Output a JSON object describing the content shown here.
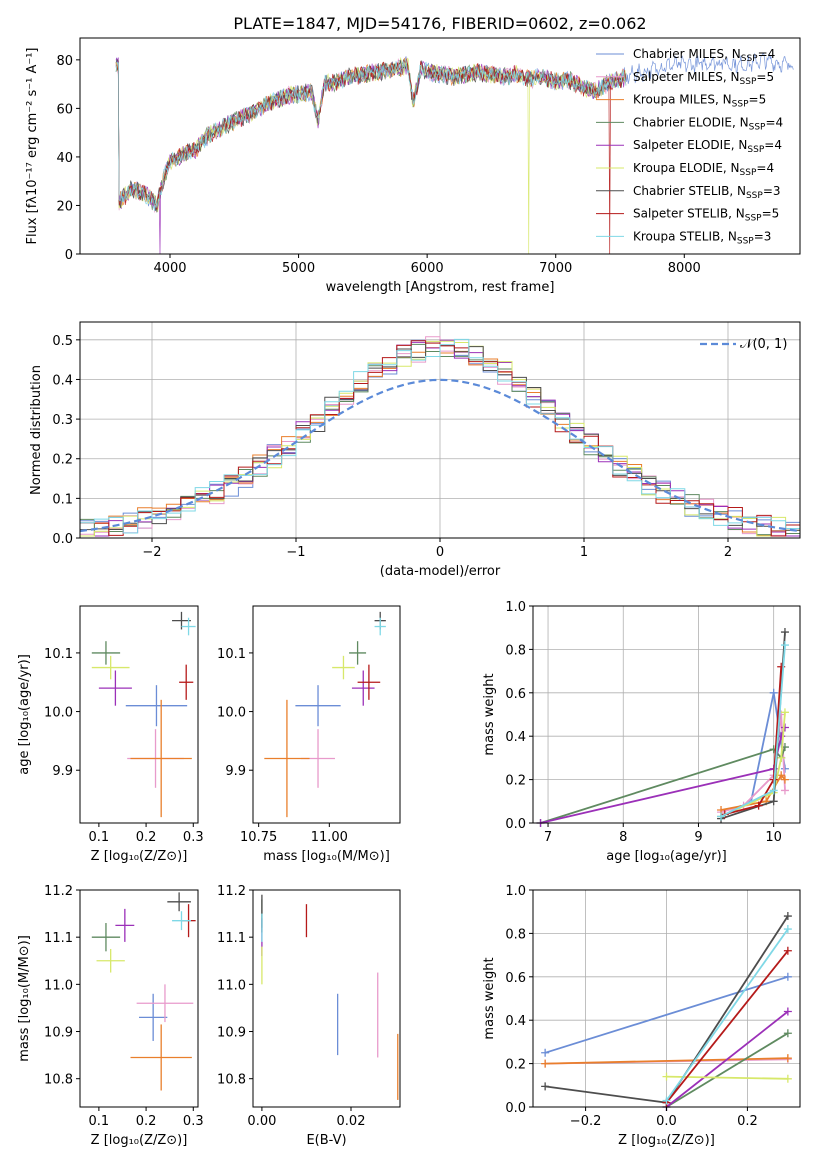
{
  "figure_title": "PLATE=1847, MJD=54176, FIBERID=0602, z=0.062",
  "series_colors": {
    "Chabrier MILES": "#6b8dd6",
    "Salpeter MILES": "#e89acb",
    "Kroupa MILES": "#e97f2c",
    "Chabrier ELODIE": "#5f8a60",
    "Salpeter ELODIE": "#9b30b8",
    "Kroupa ELODIE": "#d7e86a",
    "Chabrier STELIB": "#4d4d4d",
    "Salpeter STELIB": "#b51a1a",
    "Kroupa STELIB": "#7fd8e6"
  },
  "chart_data": [
    {
      "id": "spectrum",
      "type": "line",
      "title": "PLATE=1847, MJD=54176, FIBERID=0602, z=0.062",
      "xlabel": "wavelength [Angstrom, rest frame]",
      "ylabel": "Flux [fλ10⁻¹⁷ erg cm⁻² s⁻¹ A⁻¹]",
      "xlim": [
        3300,
        8900
      ],
      "ylim": [
        0,
        89
      ],
      "xticks": [
        "4000",
        "5000",
        "6000",
        "7000",
        "8000"
      ],
      "yticks": [
        "0",
        "20",
        "40",
        "60",
        "80"
      ],
      "legend_position": "right",
      "legend": [
        {
          "name": "Chabrier MILES",
          "nssp": "4"
        },
        {
          "name": "Salpeter MILES",
          "nssp": "5"
        },
        {
          "name": "Kroupa MILES",
          "nssp": "5"
        },
        {
          "name": "Chabrier ELODIE",
          "nssp": "4"
        },
        {
          "name": "Salpeter ELODIE",
          "nssp": "4"
        },
        {
          "name": "Kroupa ELODIE",
          "nssp": "4"
        },
        {
          "name": "Chabrier STELIB",
          "nssp": "3"
        },
        {
          "name": "Salpeter STELIB",
          "nssp": "5"
        },
        {
          "name": "Kroupa STELIB",
          "nssp": "3"
        }
      ],
      "x": [
        3600,
        3700,
        3800,
        3900,
        3950,
        4000,
        4100,
        4200,
        4300,
        4400,
        4500,
        4600,
        4700,
        4800,
        4900,
        5000,
        5100,
        5150,
        5200,
        5300,
        5400,
        5500,
        5600,
        5700,
        5800,
        5850,
        5890,
        5950,
        6000,
        6100,
        6200,
        6300,
        6400,
        6500,
        6600,
        6700,
        6800,
        6900,
        7000,
        7100,
        7200,
        7300,
        7400,
        7450,
        7500,
        7600,
        7700,
        7800,
        7900,
        8000,
        8100,
        8200,
        8300,
        8400,
        8500,
        8600,
        8700,
        8800
      ],
      "y": [
        21,
        27,
        25,
        20,
        31,
        38,
        41,
        43,
        49,
        52,
        55,
        57,
        60,
        63,
        65,
        66,
        67,
        55,
        70,
        71,
        73,
        74,
        75,
        76,
        77,
        78,
        62,
        76,
        75,
        74,
        73,
        74,
        75,
        74,
        73,
        74,
        72,
        73,
        71,
        72,
        69,
        67,
        70,
        71,
        72,
        74,
        75,
        77,
        78,
        78,
        78,
        79,
        79,
        78,
        78,
        80,
        79,
        78
      ],
      "dips": [
        {
          "series": "Salpeter ELODIE",
          "x": 3920
        },
        {
          "series": "Kroupa ELODIE",
          "x": 6790
        },
        {
          "series": "Salpeter STELIB",
          "x": 7420
        }
      ]
    },
    {
      "id": "residuals",
      "type": "histogram",
      "xlabel": "(data-model)/error",
      "ylabel": "Normed distribution",
      "xlim": [
        -2.5,
        2.5
      ],
      "ylim": [
        0,
        0.545
      ],
      "xticks": [
        "−2",
        "−1",
        "0",
        "1",
        "2"
      ],
      "yticks": [
        "0.0",
        "0.1",
        "0.2",
        "0.3",
        "0.4",
        "0.5"
      ],
      "grid": true,
      "legend_position": "upper right",
      "reference_curve": "𝒩(0, 1)",
      "bin_width": 0.1,
      "bin_start": -2.5
    },
    {
      "id": "age-vs-Z",
      "type": "errorbar",
      "xlabel": "Z [log₁₀(Z/Z⊙)]",
      "ylabel": "age  [log₁₀(age/yr)]",
      "xlim": [
        0.06,
        0.31
      ],
      "ylim": [
        9.81,
        10.18
      ],
      "xticks": [
        "0.1",
        "0.2",
        "0.3"
      ],
      "yticks": [
        "9.9",
        "10.0",
        "10.1"
      ],
      "points": [
        {
          "series": "Chabrier MILES",
          "x": 0.222,
          "y": 10.01,
          "xerr": 0.065,
          "yerr": 0.035
        },
        {
          "series": "Salpeter MILES",
          "x": 0.22,
          "y": 9.92,
          "xerr": 0.06,
          "yerr": 0.05
        },
        {
          "series": "Kroupa MILES",
          "x": 0.232,
          "y": 9.92,
          "xerr": 0.065,
          "yerr": 0.1
        },
        {
          "series": "Chabrier ELODIE",
          "x": 0.115,
          "y": 10.1,
          "xerr": 0.03,
          "yerr": 0.02
        },
        {
          "series": "Salpeter ELODIE",
          "x": 0.135,
          "y": 10.04,
          "xerr": 0.035,
          "yerr": 0.03
        },
        {
          "series": "Kroupa ELODIE",
          "x": 0.125,
          "y": 10.075,
          "xerr": 0.04,
          "yerr": 0.02
        },
        {
          "series": "Chabrier STELIB",
          "x": 0.275,
          "y": 10.155,
          "xerr": 0.02,
          "yerr": 0.015
        },
        {
          "series": "Salpeter STELIB",
          "x": 0.285,
          "y": 10.05,
          "xerr": 0.015,
          "yerr": 0.03
        },
        {
          "series": "Kroupa STELIB",
          "x": 0.29,
          "y": 10.145,
          "xerr": 0.015,
          "yerr": 0.015
        }
      ]
    },
    {
      "id": "age-vs-mass",
      "type": "errorbar",
      "xlabel": "mass [log₁₀(M/M⊙)]",
      "ylabel": "",
      "xlim": [
        10.73,
        11.25
      ],
      "ylim": [
        9.81,
        10.18
      ],
      "xticks": [
        "10.75",
        "11.00"
      ],
      "yticks": [
        "9.9",
        "10.0",
        "10.1"
      ],
      "points": [
        {
          "series": "Chabrier MILES",
          "x": 10.96,
          "y": 10.01,
          "xerr": 0.08,
          "yerr": 0.035
        },
        {
          "series": "Salpeter MILES",
          "x": 10.96,
          "y": 9.92,
          "xerr": 0.06,
          "yerr": 0.05
        },
        {
          "series": "Kroupa MILES",
          "x": 10.85,
          "y": 9.92,
          "xerr": 0.08,
          "yerr": 0.1
        },
        {
          "series": "Chabrier ELODIE",
          "x": 11.1,
          "y": 10.1,
          "xerr": 0.03,
          "yerr": 0.02
        },
        {
          "series": "Salpeter ELODIE",
          "x": 11.12,
          "y": 10.04,
          "xerr": 0.04,
          "yerr": 0.03
        },
        {
          "series": "Kroupa ELODIE",
          "x": 11.05,
          "y": 10.075,
          "xerr": 0.04,
          "yerr": 0.02
        },
        {
          "series": "Chabrier STELIB",
          "x": 11.18,
          "y": 10.155,
          "xerr": 0.02,
          "yerr": 0.015
        },
        {
          "series": "Salpeter STELIB",
          "x": 11.14,
          "y": 10.05,
          "xerr": 0.04,
          "yerr": 0.03
        },
        {
          "series": "Kroupa STELIB",
          "x": 11.18,
          "y": 10.145,
          "xerr": 0.02,
          "yerr": 0.015
        }
      ]
    },
    {
      "id": "weight-vs-age",
      "type": "line",
      "xlabel": "age  [log₁₀(age/yr)]",
      "ylabel": "mass weight",
      "xlim": [
        6.8,
        10.35
      ],
      "ylim": [
        0,
        1.0
      ],
      "xticks": [
        "7",
        "8",
        "9",
        "10"
      ],
      "yticks": [
        "0.0",
        "0.2",
        "0.4",
        "0.6",
        "0.8",
        "1.0"
      ],
      "grid": true,
      "series": [
        {
          "name": "Chabrier MILES",
          "x": [
            9.3,
            9.7,
            10.0,
            10.15
          ],
          "y": [
            0.03,
            0.1,
            0.6,
            0.25
          ]
        },
        {
          "name": "Salpeter MILES",
          "x": [
            9.3,
            9.6,
            10.0,
            10.1,
            10.15
          ],
          "y": [
            0.05,
            0.08,
            0.22,
            0.5,
            0.15
          ]
        },
        {
          "name": "Kroupa MILES",
          "x": [
            9.3,
            9.9,
            10.1,
            10.15
          ],
          "y": [
            0.06,
            0.1,
            0.22,
            0.2
          ]
        },
        {
          "name": "Chabrier ELODIE",
          "x": [
            6.9,
            10.0,
            10.1,
            10.15
          ],
          "y": [
            0.0,
            0.34,
            0.3,
            0.35
          ]
        },
        {
          "name": "Salpeter ELODIE",
          "x": [
            6.9,
            10.0,
            10.1,
            10.15
          ],
          "y": [
            0.0,
            0.25,
            0.4,
            0.44
          ]
        },
        {
          "name": "Kroupa ELODIE",
          "x": [
            9.3,
            10.0,
            10.1,
            10.15
          ],
          "y": [
            0.03,
            0.14,
            0.3,
            0.51
          ]
        },
        {
          "name": "Chabrier STELIB",
          "x": [
            9.3,
            10.0,
            10.15
          ],
          "y": [
            0.02,
            0.1,
            0.88
          ]
        },
        {
          "name": "Salpeter STELIB",
          "x": [
            9.35,
            9.8,
            10.0,
            10.1
          ],
          "y": [
            0.04,
            0.08,
            0.2,
            0.72
          ]
        },
        {
          "name": "Kroupa STELIB",
          "x": [
            9.3,
            10.0,
            10.15
          ],
          "y": [
            0.03,
            0.15,
            0.82
          ]
        }
      ]
    },
    {
      "id": "mass-vs-Z",
      "type": "errorbar",
      "xlabel": "Z [log₁₀(Z/Z⊙)]",
      "ylabel": "mass [log₁₀(M/M⊙)]",
      "xlim": [
        0.06,
        0.31
      ],
      "ylim": [
        10.74,
        11.2
      ],
      "xticks": [
        "0.1",
        "0.2",
        "0.3"
      ],
      "yticks": [
        "10.8",
        "10.9",
        "11.0",
        "11.1",
        "11.2"
      ],
      "points": [
        {
          "series": "Chabrier MILES",
          "x": 0.215,
          "y": 10.93,
          "xerr": 0.03,
          "yerr": 0.05
        },
        {
          "series": "Salpeter MILES",
          "x": 0.24,
          "y": 10.96,
          "xerr": 0.06,
          "yerr": 0.04
        },
        {
          "series": "Kroupa MILES",
          "x": 0.232,
          "y": 10.845,
          "xerr": 0.065,
          "yerr": 0.07
        },
        {
          "series": "Chabrier ELODIE",
          "x": 0.115,
          "y": 11.1,
          "xerr": 0.03,
          "yerr": 0.03
        },
        {
          "series": "Salpeter ELODIE",
          "x": 0.155,
          "y": 11.125,
          "xerr": 0.02,
          "yerr": 0.035
        },
        {
          "series": "Kroupa ELODIE",
          "x": 0.125,
          "y": 11.05,
          "xerr": 0.03,
          "yerr": 0.025
        },
        {
          "series": "Chabrier STELIB",
          "x": 0.27,
          "y": 11.175,
          "xerr": 0.025,
          "yerr": 0.02
        },
        {
          "series": "Salpeter STELIB",
          "x": 0.29,
          "y": 11.135,
          "xerr": 0.015,
          "yerr": 0.035
        },
        {
          "series": "Kroupa STELIB",
          "x": 0.275,
          "y": 11.135,
          "xerr": 0.02,
          "yerr": 0.02
        }
      ]
    },
    {
      "id": "mass-vs-ebv",
      "type": "errorbar",
      "xlabel": "E(B-V)",
      "ylabel": "",
      "xlim": [
        -0.002,
        0.031
      ],
      "ylim": [
        10.74,
        11.2
      ],
      "xticks": [
        "0.00",
        "0.02"
      ],
      "yticks": [
        "10.8",
        "10.9",
        "11.0",
        "11.1",
        "11.2"
      ],
      "points": [
        {
          "series": "Chabrier MILES",
          "x": 0.017,
          "y": 10.915,
          "xerr": 0.0,
          "yerr": 0.065
        },
        {
          "series": "Salpeter MILES",
          "x": 0.026,
          "y": 10.935,
          "xerr": 0.0,
          "yerr": 0.09
        },
        {
          "series": "Kroupa MILES",
          "x": 0.0305,
          "y": 10.825,
          "xerr": 0.0,
          "yerr": 0.07
        },
        {
          "series": "Chabrier ELODIE",
          "x": 0.0,
          "y": 11.15,
          "xerr": 0.0,
          "yerr": 0.03
        },
        {
          "series": "Salpeter ELODIE",
          "x": 0.0,
          "y": 11.1,
          "xerr": 0.0,
          "yerr": 0.04
        },
        {
          "series": "Kroupa ELODIE",
          "x": 0.0,
          "y": 11.04,
          "xerr": 0.0,
          "yerr": 0.04
        },
        {
          "series": "Chabrier STELIB",
          "x": 0.0,
          "y": 11.15,
          "xerr": 0.0,
          "yerr": 0.04
        },
        {
          "series": "Salpeter STELIB",
          "x": 0.01,
          "y": 11.135,
          "xerr": 0.0,
          "yerr": 0.035
        },
        {
          "series": "Kroupa STELIB",
          "x": 0.0,
          "y": 11.12,
          "xerr": 0.0,
          "yerr": 0.03
        }
      ]
    },
    {
      "id": "weight-vs-Z",
      "type": "line",
      "xlabel": "Z [log₁₀(Z/Z⊙)]",
      "ylabel": "mass weight",
      "xlim": [
        -0.33,
        0.33
      ],
      "ylim": [
        0,
        1.0
      ],
      "xticks": [
        "−0.2",
        "0.0",
        "0.2"
      ],
      "yticks": [
        "0.0",
        "0.2",
        "0.4",
        "0.6",
        "0.8",
        "1.0"
      ],
      "grid": true,
      "series": [
        {
          "name": "Chabrier MILES",
          "x": [
            -0.3,
            0.3
          ],
          "y": [
            0.25,
            0.6
          ]
        },
        {
          "name": "Salpeter MILES",
          "x": [
            -0.3,
            0.3
          ],
          "y": [
            0.2,
            0.22
          ]
        },
        {
          "name": "Kroupa MILES",
          "x": [
            -0.3,
            0.3
          ],
          "y": [
            0.2,
            0.225
          ]
        },
        {
          "name": "Chabrier ELODIE",
          "x": [
            0.0,
            0.3
          ],
          "y": [
            0.0,
            0.34
          ]
        },
        {
          "name": "Salpeter ELODIE",
          "x": [
            0.0,
            0.3
          ],
          "y": [
            0.0,
            0.44
          ]
        },
        {
          "name": "Kroupa ELODIE",
          "x": [
            0.0,
            0.3
          ],
          "y": [
            0.14,
            0.13
          ]
        },
        {
          "name": "Chabrier STELIB",
          "x": [
            -0.3,
            0.0,
            0.3
          ],
          "y": [
            0.095,
            0.02,
            0.88
          ]
        },
        {
          "name": "Salpeter STELIB",
          "x": [
            0.0,
            0.3
          ],
          "y": [
            0.02,
            0.72
          ]
        },
        {
          "name": "Kroupa STELIB",
          "x": [
            0.0,
            0.3
          ],
          "y": [
            0.03,
            0.82
          ]
        }
      ]
    }
  ]
}
